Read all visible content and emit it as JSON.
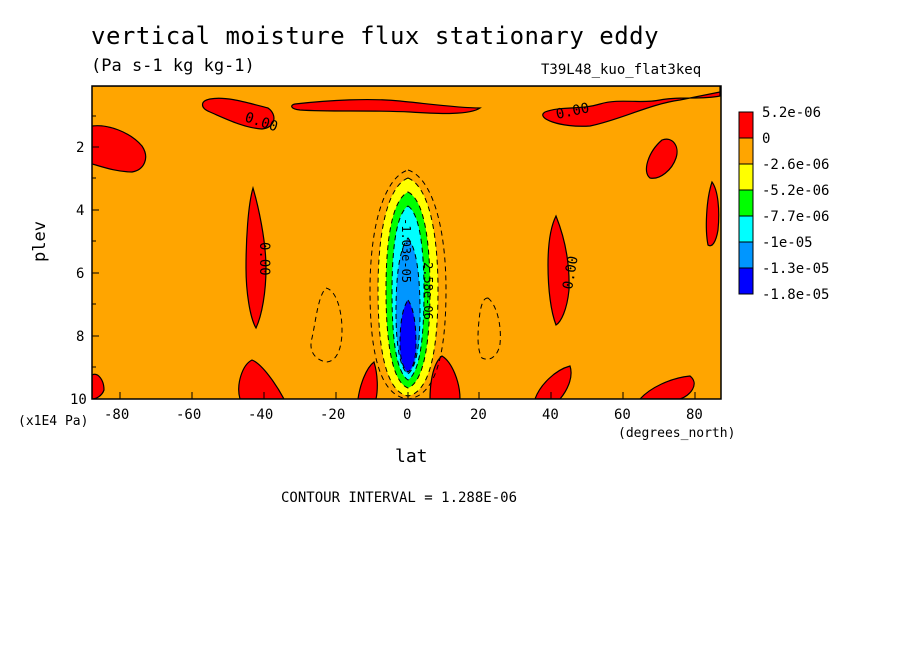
{
  "header": {
    "title": "vertical moisture flux stationary eddy",
    "units": "(Pa s-1 kg kg-1)",
    "run": "T39L48_kuo_flat3keq"
  },
  "footer": {
    "contour_interval": "CONTOUR INTERVAL = 1.288E-06"
  },
  "chart_data": {
    "type": "heatmap",
    "title": "vertical moisture flux stationary eddy",
    "subtitle": "(Pa s-1 kg kg-1)",
    "xlabel": "lat",
    "xunit": "(degrees_north)",
    "ylabel": "plev",
    "yunit": "(x1E4 Pa)",
    "xlim": [
      -87,
      87
    ],
    "ylim": [
      10,
      0.3
    ],
    "x_ticks": [
      -80,
      -60,
      -40,
      -20,
      0,
      20,
      40,
      60,
      80
    ],
    "y_ticks": [
      2,
      4,
      6,
      8,
      10
    ],
    "legend": {
      "placement": "right",
      "levels": [
        "5.2e-06",
        "0",
        "-2.6e-06",
        "-5.2e-06",
        "-7.7e-06",
        "-1e-05",
        "-1.3e-05",
        "-1.8e-05"
      ],
      "colors": [
        "#ff0000",
        "#ffa500",
        "#ffff00",
        "#00ff00",
        "#00ffff",
        "#0096ff",
        "#0000ff"
      ]
    },
    "contour_labels": [
      {
        "text": "0.00",
        "lat": -36,
        "plev": 1.1
      },
      {
        "text": "0.00",
        "lat": 50,
        "plev": 0.8
      },
      {
        "text": "0.00",
        "lat": -41,
        "plev": 5.6
      },
      {
        "text": "0.00",
        "lat": 45,
        "plev": 7.4
      },
      {
        "text": "2.58e-06",
        "lat": 6,
        "plev": 6.5
      },
      {
        "text": "-1.03e-05",
        "lat": 0,
        "plev": 5.4
      }
    ],
    "features": [
      {
        "name": "equatorial minimum",
        "lat": 0,
        "plev": 7.5,
        "value": -1.8e-05
      },
      {
        "name": "south midlatitude maximum",
        "lat": -42,
        "plev": 5.5,
        "value": 5.2e-06
      },
      {
        "name": "north midlatitude maximum",
        "lat": 43,
        "plev": 6.5,
        "value": 5.2e-06
      }
    ]
  }
}
